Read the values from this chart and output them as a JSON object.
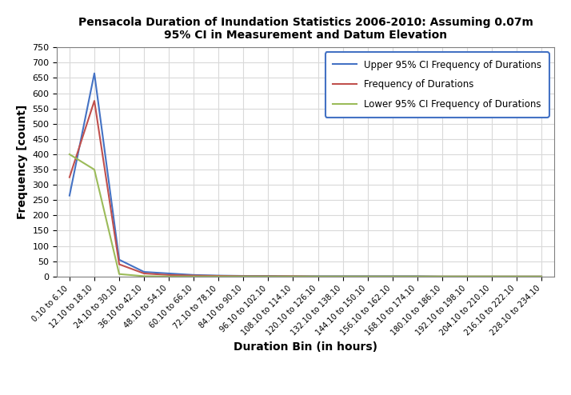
{
  "title_line1": "Pensacola Duration of Inundation Statistics 2006-2010: Assuming 0.07m",
  "title_line2": "95% CI in Measurement and Datum Elevation",
  "xlabel": "Duration Bin (in hours)",
  "ylabel": "Frequency [count]",
  "categories": [
    "0.10 to 6.10",
    "12.10 to 18.10",
    "24.10 to 30.10",
    "36.10 to 42.10",
    "48.10 to 54.10",
    "60.10 to 66.10",
    "72.10 to 78.10",
    "84.10 to 90.10",
    "96.10 to 102.10",
    "108.10 to 114.10",
    "120.10 to 126.10",
    "132.10 to 138.10",
    "144.10 to 150.10",
    "156.10 to 162.10",
    "168.10 to 174.10",
    "180.10 to 186.10",
    "192.10 to 198.10",
    "204.10 to 210.10",
    "216.10 to 222.10",
    "228.10 to 234.10"
  ],
  "upper_ci": [
    265,
    665,
    55,
    15,
    10,
    5,
    3,
    2,
    2,
    1,
    1,
    1,
    1,
    1,
    1,
    0,
    0,
    0,
    0,
    0
  ],
  "frequency": [
    325,
    575,
    40,
    10,
    5,
    3,
    2,
    1,
    1,
    1,
    0,
    0,
    0,
    0,
    0,
    0,
    0,
    0,
    0,
    0
  ],
  "lower_ci": [
    400,
    350,
    8,
    1,
    0,
    0,
    0,
    0,
    0,
    0,
    0,
    0,
    0,
    0,
    0,
    0,
    0,
    0,
    0,
    0
  ],
  "upper_color": "#4472C4",
  "freq_color": "#C0504D",
  "lower_color": "#9BBB59",
  "ylim": [
    0,
    750
  ],
  "yticks": [
    0,
    50,
    100,
    150,
    200,
    250,
    300,
    350,
    400,
    450,
    500,
    550,
    600,
    650,
    700,
    750
  ],
  "legend_upper": "Upper 95% CI Frequency of Durations",
  "legend_freq": "Frequency of Durations",
  "legend_lower": "Lower 95% CI Frequency of Durations",
  "bg_color": "#FFFFFF",
  "grid_color": "#D9D9D9"
}
